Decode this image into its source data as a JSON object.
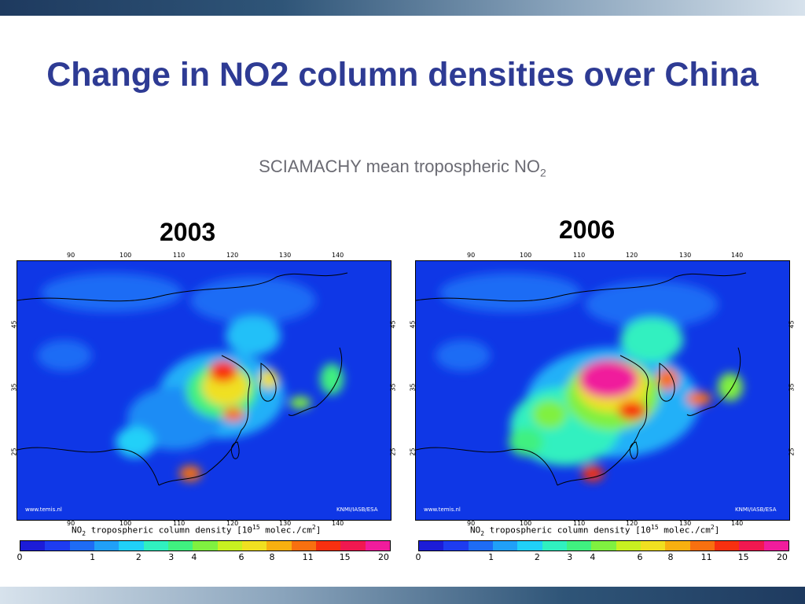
{
  "slide": {
    "title": "Change in NO2 column densities over China",
    "subtitle_main": "SCIAMACHY mean tropospheric NO",
    "subtitle_sub": "2"
  },
  "panels": [
    {
      "year": "2003",
      "credit_left": "www.temis.nl",
      "credit_right": "KNMI/IASB/ESA"
    },
    {
      "year": "2006",
      "credit_left": "www.temis.nl",
      "credit_right": "KNMI/IASB/ESA"
    }
  ],
  "map_axes": {
    "lon_ticks": [
      "90",
      "100",
      "110",
      "120",
      "130",
      "140"
    ],
    "lat_ticks": [
      "45",
      "35",
      "25"
    ]
  },
  "colorbar": {
    "label_prefix": "NO",
    "label_sub": "2",
    "label_mid": " tropospheric column density [10",
    "label_sup": "15",
    "label_suffix": " molec./cm",
    "label_sup2": "2",
    "label_end": "]",
    "ticks": [
      "0",
      "1",
      "2",
      "3",
      "4",
      "6",
      "8",
      "11",
      "15",
      "20"
    ],
    "colors": [
      "#1c1cd8",
      "#1e3cf0",
      "#1e6cf5",
      "#20a0f8",
      "#20d0f8",
      "#30f0c0",
      "#40f080",
      "#80f040",
      "#c8f020",
      "#f0e020",
      "#f8b010",
      "#f87010",
      "#f83010",
      "#f01850",
      "#f01c9c"
    ]
  }
}
